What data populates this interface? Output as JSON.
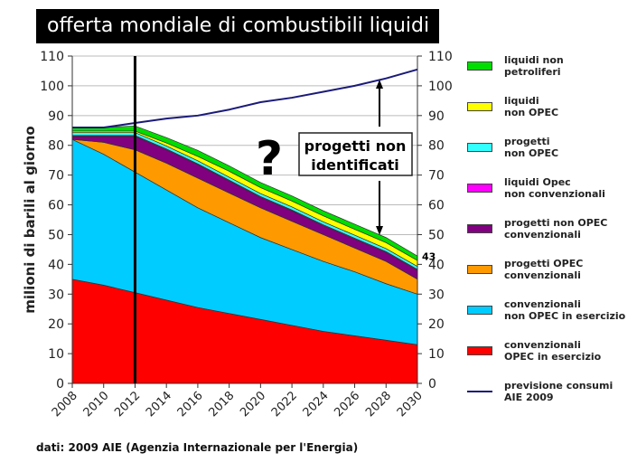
{
  "title": "offerta mondiale di combustibili liquidi",
  "source": "dati: 2009 AIE (Agenzia Internazionale per l'Energia)",
  "chart_data": {
    "type": "area",
    "stacked": true,
    "x": [
      2008,
      2010,
      2012,
      2014,
      2016,
      2018,
      2020,
      2022,
      2024,
      2026,
      2028,
      2030
    ],
    "ylabel": "milioni di barili al giorno",
    "ylim": [
      0,
      110
    ],
    "yticks": [
      0,
      10,
      20,
      30,
      40,
      50,
      60,
      70,
      80,
      90,
      100,
      110
    ],
    "secondary_y_axis": true,
    "grid": true,
    "legend_position": "right",
    "series": [
      {
        "name": "convenzionali OPEC in esercizio",
        "color": "#ff0000",
        "values": [
          35,
          33,
          30.5,
          28,
          25.5,
          23.5,
          21.5,
          19.5,
          17.5,
          16,
          14.5,
          13
        ]
      },
      {
        "name": "convenzionali non OPEC in esercizio",
        "color": "#00ccff",
        "values": [
          47,
          44,
          40.5,
          37,
          33.5,
          30.5,
          27.5,
          25.5,
          23.5,
          21.5,
          19,
          17
        ]
      },
      {
        "name": "progetti OPEC convenzionali",
        "color": "#ff9900",
        "values": [
          0,
          4,
          7.5,
          9,
          10,
          10,
          10,
          9.5,
          9,
          8,
          7.5,
          5
        ]
      },
      {
        "name": "progetti non OPEC convenzionali",
        "color": "#800080",
        "values": [
          1,
          2,
          4.5,
          4.5,
          4.5,
          4,
          3.5,
          3.5,
          3,
          3,
          3,
          3
        ]
      },
      {
        "name": "liquidi Opec non convenzionali",
        "color": "#ff00ff",
        "values": [
          0.3,
          0.3,
          0.3,
          0.3,
          0.3,
          0.3,
          0.3,
          0.3,
          0.3,
          0.3,
          0.3,
          0.3
        ]
      },
      {
        "name": "progetti non OPEC",
        "color": "#33ffff",
        "values": [
          1,
          1,
          1,
          1,
          1,
          1,
          1,
          1,
          1,
          1,
          1,
          1
        ]
      },
      {
        "name": "liquidi non OPEC",
        "color": "#ffff00",
        "values": [
          0.5,
          0.5,
          0.5,
          1,
          1.5,
          2,
          2,
          2,
          2,
          2,
          2,
          2
        ]
      },
      {
        "name": "liquidi non petroliferi",
        "color": "#00dd00",
        "values": [
          1.2,
          1.2,
          1.7,
          1.8,
          2,
          1.8,
          1.7,
          1.7,
          1.7,
          1.7,
          1.7,
          1.5
        ]
      }
    ],
    "line": {
      "name": "previsione consumi AIE 2009",
      "color": "#1a1a7a",
      "values": [
        86,
        86,
        87.5,
        89,
        90,
        92,
        94.5,
        96,
        98,
        100,
        102.5,
        105.5
      ]
    },
    "vertical_marker": 2012,
    "annotations": {
      "end_value": "43",
      "question": "?",
      "box": "progetti non\nidentificati"
    }
  },
  "legend": [
    {
      "label": "liquidi non\npetroliferi",
      "color": "#00dd00"
    },
    {
      "label": "liquidi\nnon OPEC",
      "color": "#ffff00"
    },
    {
      "label": "progetti\nnon OPEC",
      "color": "#33ffff"
    },
    {
      "label": "liquidi Opec\nnon convenzionali",
      "color": "#ff00ff"
    },
    {
      "label": "progetti non OPEC\nconvenzionali",
      "color": "#800080"
    },
    {
      "label": "progetti OPEC\nconvenzionali",
      "color": "#ff9900"
    },
    {
      "label": "convenzionali\nnon OPEC in esercizio",
      "color": "#00ccff"
    },
    {
      "label": "convenzionali\nOPEC in esercizio",
      "color": "#ff0000"
    },
    {
      "label": "previsione consumi\nAIE 2009",
      "color": "#1a1a7a",
      "line": true
    }
  ]
}
